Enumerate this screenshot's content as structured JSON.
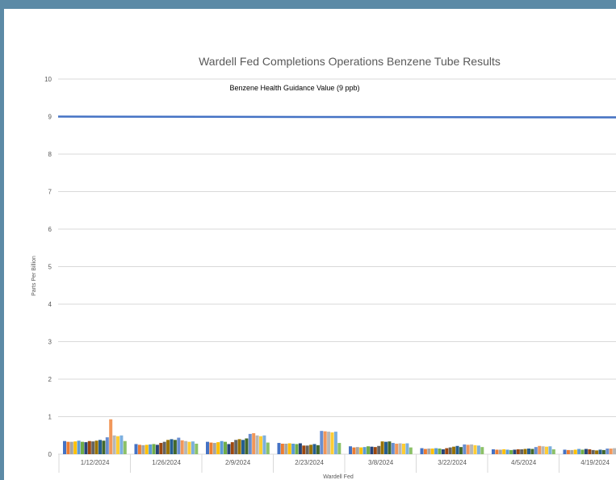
{
  "chart_data": {
    "type": "bar",
    "title": "Wardell Fed Completions Operations Benzene Tube Results",
    "xlabel": "Wardell Fed",
    "ylabel": "Parts Per Billion",
    "ylim": [
      0,
      10
    ],
    "yticks": [
      0,
      1,
      2,
      3,
      4,
      5,
      6,
      7,
      8,
      9,
      10
    ],
    "grid": true,
    "legend": "none",
    "categories": [
      "1/12/2024",
      "1/26/2024",
      "2/9/2024",
      "2/23/2024",
      "3/8/2024",
      "3/22/2024",
      "4/5/2024",
      "4/19/2024"
    ],
    "series_colors": [
      "#4472c4",
      "#ed7d31",
      "#a5a5a5",
      "#ffc000",
      "#5b9bd5",
      "#70ad47",
      "#264478",
      "#9e480e",
      "#636363",
      "#997300",
      "#255e91",
      "#43682b",
      "#698ed0",
      "#f1975a",
      "#b7b7b7",
      "#ffcd33",
      "#7cafdd",
      "#8cc168"
    ],
    "groups": [
      [
        0.35,
        0.33,
        0.33,
        0.34,
        0.36,
        0.33,
        0.32,
        0.35,
        0.34,
        0.36,
        0.38,
        0.36,
        0.45,
        0.93,
        0.5,
        0.48,
        0.5,
        0.35
      ],
      [
        0.27,
        0.25,
        0.24,
        0.25,
        0.26,
        0.27,
        0.25,
        0.3,
        0.33,
        0.38,
        0.4,
        0.38,
        0.44,
        0.37,
        0.35,
        0.33,
        0.34,
        0.28
      ],
      [
        0.33,
        0.31,
        0.3,
        0.32,
        0.35,
        0.33,
        0.27,
        0.32,
        0.38,
        0.4,
        0.38,
        0.42,
        0.54,
        0.56,
        0.5,
        0.48,
        0.5,
        0.31
      ],
      [
        0.3,
        0.28,
        0.28,
        0.29,
        0.28,
        0.27,
        0.29,
        0.23,
        0.23,
        0.25,
        0.27,
        0.24,
        0.62,
        0.61,
        0.6,
        0.58,
        0.6,
        0.3
      ],
      [
        0.21,
        0.18,
        0.19,
        0.18,
        0.19,
        0.21,
        0.2,
        0.19,
        0.22,
        0.34,
        0.33,
        0.34,
        0.3,
        0.28,
        0.29,
        0.28,
        0.29,
        0.18
      ],
      [
        0.16,
        0.14,
        0.15,
        0.15,
        0.16,
        0.15,
        0.13,
        0.16,
        0.18,
        0.2,
        0.22,
        0.19,
        0.26,
        0.25,
        0.26,
        0.24,
        0.23,
        0.19
      ],
      [
        0.13,
        0.12,
        0.12,
        0.13,
        0.12,
        0.11,
        0.12,
        0.13,
        0.13,
        0.14,
        0.15,
        0.14,
        0.19,
        0.22,
        0.21,
        0.2,
        0.21,
        0.13
      ],
      [
        0.12,
        0.11,
        0.11,
        0.12,
        0.14,
        0.12,
        0.14,
        0.13,
        0.11,
        0.1,
        0.12,
        0.11,
        0.15,
        0.15,
        0.16,
        0.14,
        0.16,
        0.32
      ]
    ],
    "reference_line": {
      "label": "Benzene Health Guidance Value (9 ppb)",
      "value": 9,
      "color": "#4472c4"
    }
  }
}
